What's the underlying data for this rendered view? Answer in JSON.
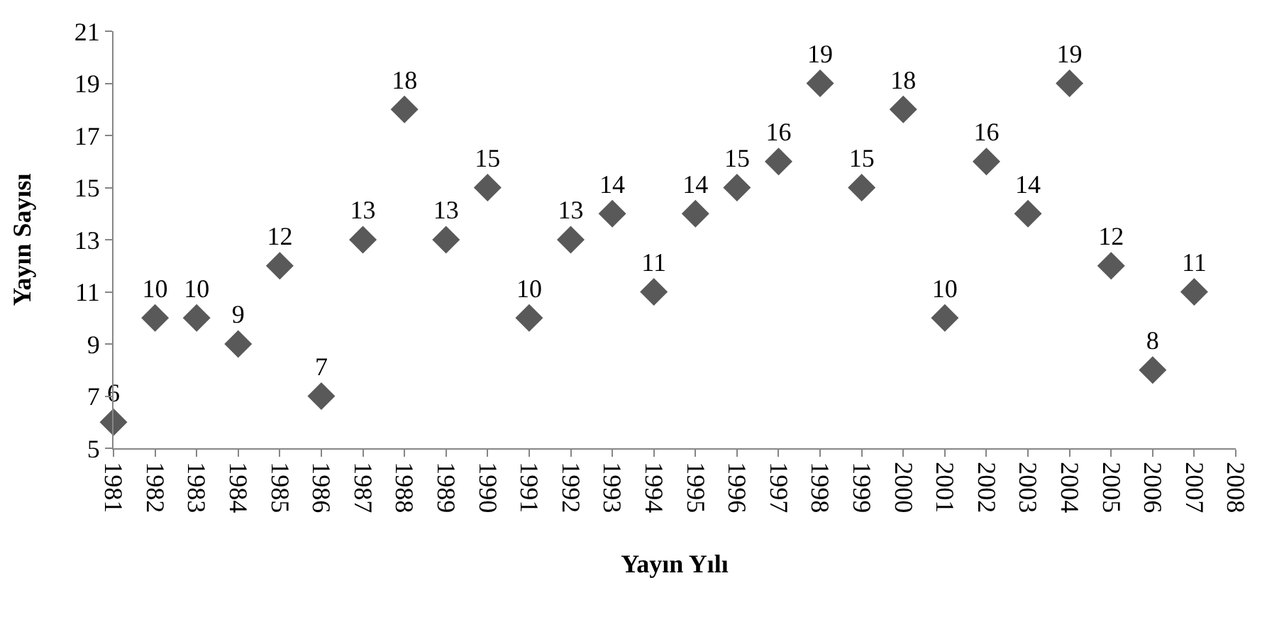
{
  "chart_data": {
    "type": "scatter",
    "xlabel": "Yayın Yılı",
    "ylabel": "Yayın Sayısı",
    "x": [
      1981,
      1982,
      1983,
      1984,
      1985,
      1986,
      1987,
      1988,
      1989,
      1990,
      1991,
      1992,
      1993,
      1994,
      1995,
      1996,
      1997,
      1998,
      1999,
      2000,
      2001,
      2002,
      2003,
      2004,
      2005,
      2006,
      2007
    ],
    "values": [
      6,
      10,
      10,
      9,
      12,
      7,
      13,
      18,
      13,
      15,
      10,
      13,
      14,
      11,
      14,
      15,
      16,
      19,
      15,
      18,
      10,
      16,
      14,
      19,
      12,
      8,
      11
    ],
    "color": "#595959",
    "marker": "diamond",
    "data_labels": true,
    "grid": false,
    "legend": false,
    "xlim": [
      1981,
      2008
    ],
    "xticks": [
      1981,
      1982,
      1983,
      1984,
      1985,
      1986,
      1987,
      1988,
      1989,
      1990,
      1991,
      1992,
      1993,
      1994,
      1995,
      1996,
      1997,
      1998,
      1999,
      2000,
      2001,
      2002,
      2003,
      2004,
      2005,
      2006,
      2007,
      2008
    ],
    "ylim": [
      5,
      21
    ],
    "yticks": [
      5,
      7,
      9,
      11,
      13,
      15,
      17,
      19,
      21
    ]
  }
}
